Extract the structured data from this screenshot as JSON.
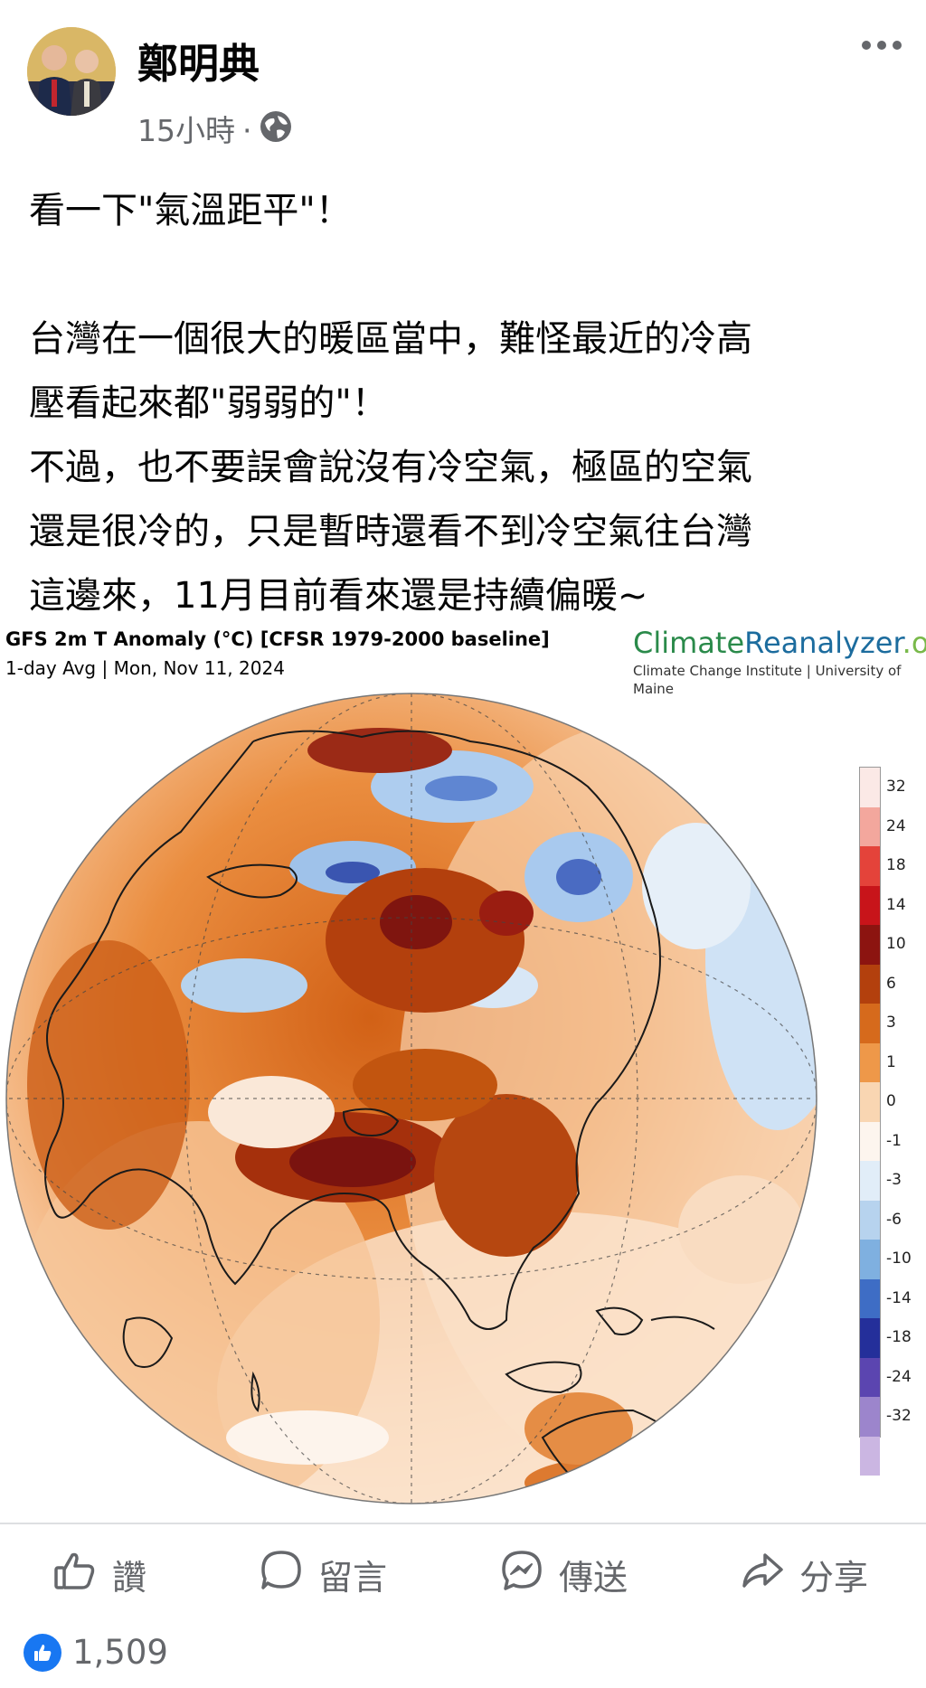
{
  "post": {
    "author": "鄭明典",
    "time": "15小時",
    "meta_separator": "·",
    "privacy_icon": "globe-icon",
    "more_icon": "more-dots-icon",
    "text": {
      "line1": "看一下\"氣溫距平\"！",
      "line2": "台灣在一個很大的暖區當中，難怪最近的冷高",
      "line3": "壓看起來都\"弱弱的\"！",
      "line4": "不過，也不要誤會說沒有冷空氣，極區的空氣",
      "line5": "還是很冷的，只是暫時還看不到冷空氣往台灣",
      "line6": "這邊來，11月目前看來還是持續偏暖~"
    }
  },
  "map": {
    "title": "GFS 2m T Anomaly (°C) [CFSR 1979-2000 baseline]",
    "subtitle": "1-day Avg | Mon, Nov 11, 2024",
    "brand_part1": "Climate",
    "brand_part2": "Reanalyzer",
    "brand_part3": ".org",
    "brand_sub": "Climate Change Institute | University of Maine",
    "colorbar_ticks": [
      "32",
      "24",
      "18",
      "14",
      "10",
      "6",
      "3",
      "1",
      "0",
      "-1",
      "-3",
      "-6",
      "-10",
      "-14",
      "-18",
      "-24",
      "-32"
    ],
    "colorbar_colors": [
      "#fbe9e6",
      "#f3a79d",
      "#e4433a",
      "#c8141a",
      "#8c1410",
      "#b3400d",
      "#d66a1c",
      "#ee9849",
      "#f9d6b2",
      "#fdf5ee",
      "#e1edf8",
      "#b7d3ee",
      "#7fb0e0",
      "#3e6dc5",
      "#242f9a",
      "#5b45b0",
      "#9c85cc",
      "#cbb6e2"
    ]
  },
  "actions": {
    "like": "讚",
    "comment": "留言",
    "send": "傳送",
    "share": "分享"
  },
  "reactions": {
    "count": "1,509"
  }
}
